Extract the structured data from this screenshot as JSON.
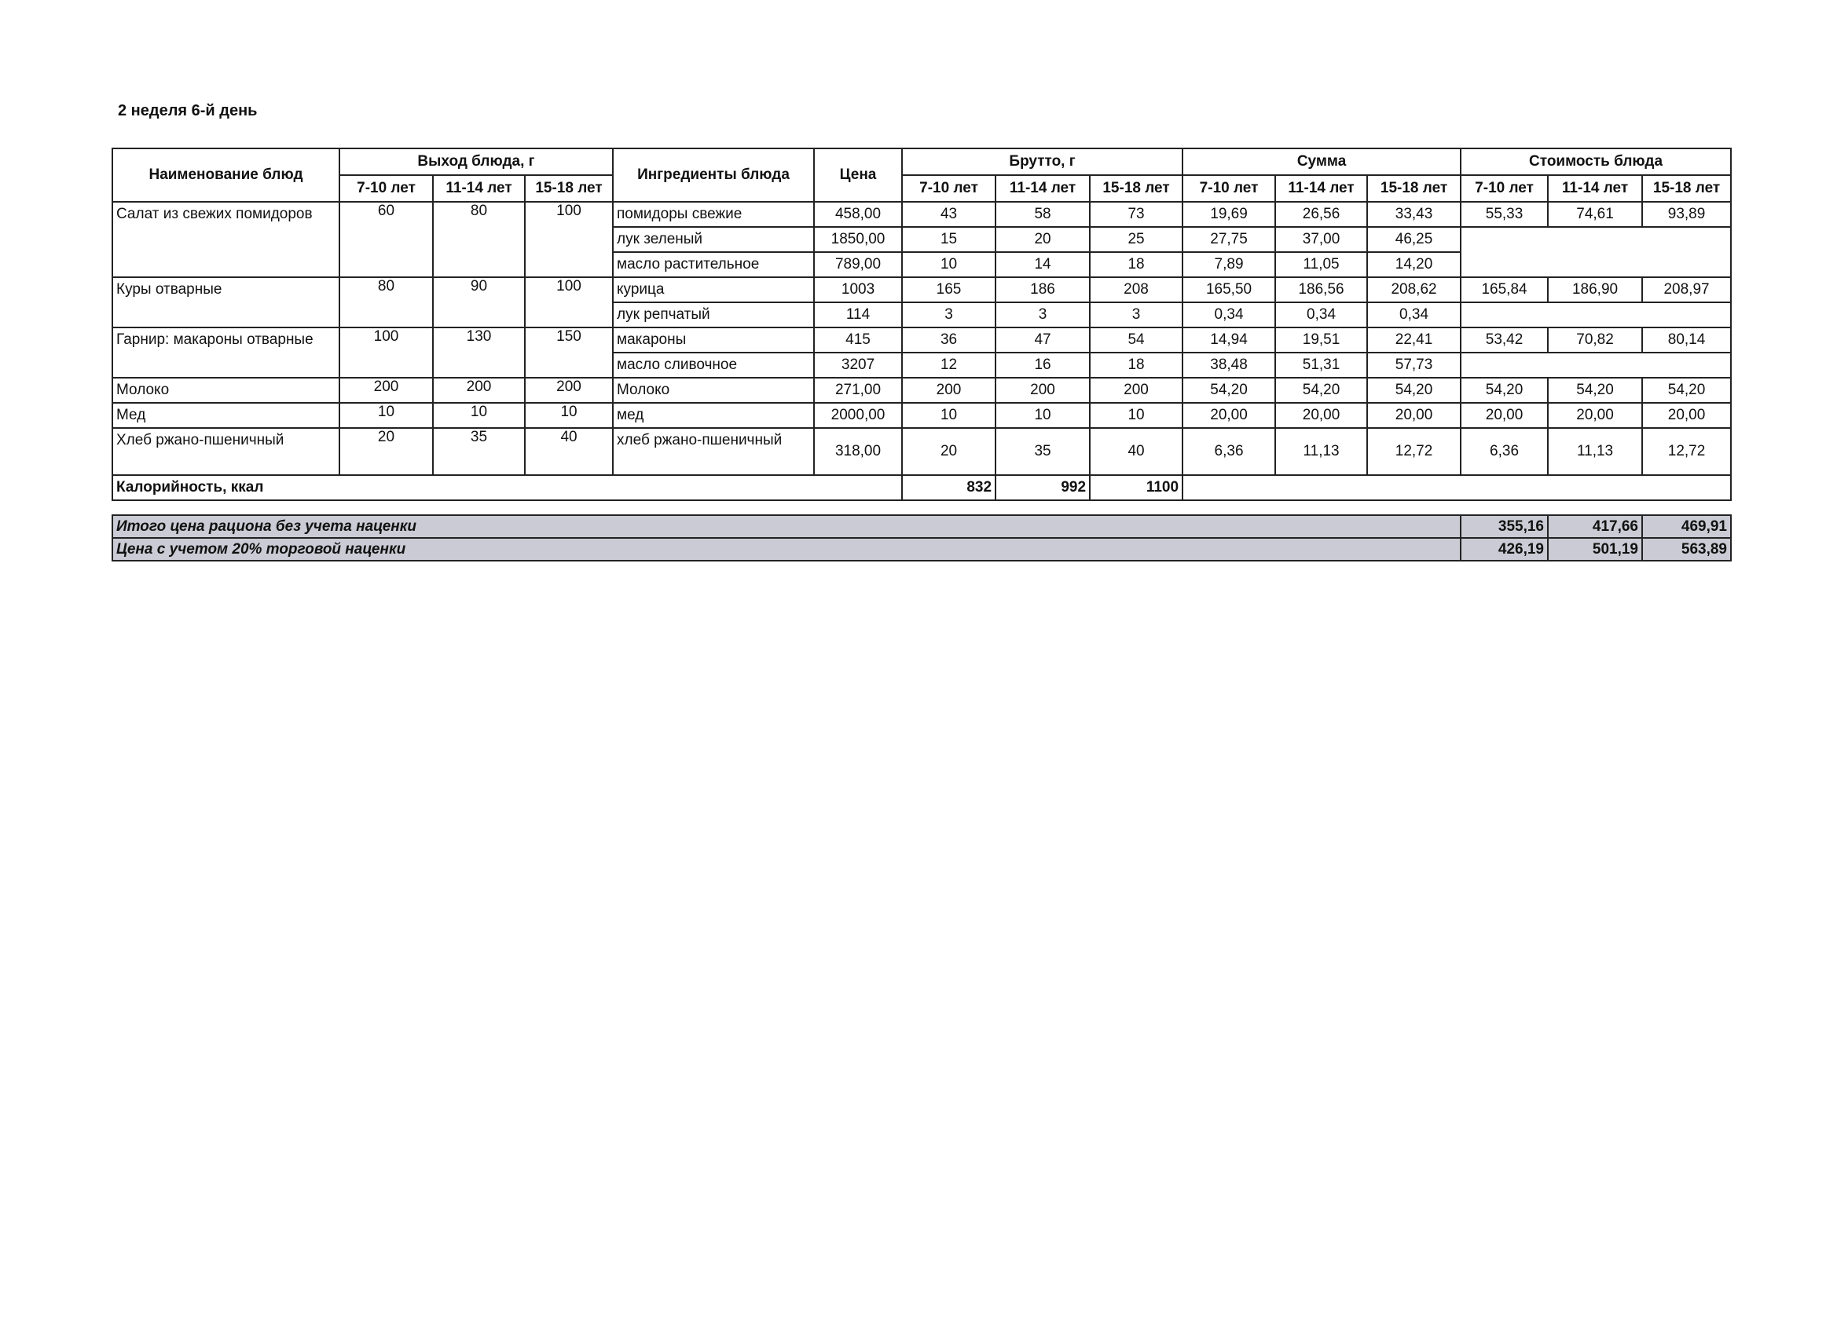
{
  "title": "2 неделя 6-й день",
  "headers": {
    "dish": "Наименование блюд",
    "yield": "Выход блюда, г",
    "ingredients": "Ингредиенты блюда",
    "price": "Цена",
    "brutto": "Брутто, г",
    "sum": "Сумма",
    "cost": "Стоимость блюда",
    "ages": [
      "7-10 лет",
      "11-14 лет",
      "15-18 лет"
    ]
  },
  "dishes": [
    {
      "name": "Салат из свежих помидоров",
      "yield": [
        "60",
        "80",
        "100"
      ],
      "cost": [
        "55,33",
        "74,61",
        "93,89"
      ],
      "ingredients": [
        {
          "name": "помидоры свежие",
          "price": "458,00",
          "brutto": [
            "43",
            "58",
            "73"
          ],
          "sum": [
            "19,69",
            "26,56",
            "33,43"
          ]
        },
        {
          "name": "лук зеленый",
          "price": "1850,00",
          "brutto": [
            "15",
            "20",
            "25"
          ],
          "sum": [
            "27,75",
            "37,00",
            "46,25"
          ]
        },
        {
          "name": "масло растительное",
          "price": "789,00",
          "brutto": [
            "10",
            "14",
            "18"
          ],
          "sum": [
            "7,89",
            "11,05",
            "14,20"
          ]
        }
      ]
    },
    {
      "name": "Куры отварные",
      "yield": [
        "80",
        "90",
        "100"
      ],
      "cost": [
        "165,84",
        "186,90",
        "208,97"
      ],
      "ingredients": [
        {
          "name": "курица",
          "price": "1003",
          "brutto": [
            "165",
            "186",
            "208"
          ],
          "sum": [
            "165,50",
            "186,56",
            "208,62"
          ]
        },
        {
          "name": "лук репчатый",
          "price": "114",
          "brutto": [
            "3",
            "3",
            "3"
          ],
          "sum": [
            "0,34",
            "0,34",
            "0,34"
          ]
        }
      ]
    },
    {
      "name": "Гарнир: макароны отварные",
      "yield": [
        "100",
        "130",
        "150"
      ],
      "cost": [
        "53,42",
        "70,82",
        "80,14"
      ],
      "ingredients": [
        {
          "name": "макароны",
          "price": "415",
          "brutto": [
            "36",
            "47",
            "54"
          ],
          "sum": [
            "14,94",
            "19,51",
            "22,41"
          ]
        },
        {
          "name": "масло сливочное",
          "price": "3207",
          "brutto": [
            "12",
            "16",
            "18"
          ],
          "sum": [
            "38,48",
            "51,31",
            "57,73"
          ]
        }
      ]
    },
    {
      "name": "Молоко",
      "yield": [
        "200",
        "200",
        "200"
      ],
      "cost": [
        "54,20",
        "54,20",
        "54,20"
      ],
      "ingredients": [
        {
          "name": "Молоко",
          "price": "271,00",
          "brutto": [
            "200",
            "200",
            "200"
          ],
          "sum": [
            "54,20",
            "54,20",
            "54,20"
          ]
        }
      ]
    },
    {
      "name": "Мед",
      "yield": [
        "10",
        "10",
        "10"
      ],
      "cost": [
        "20,00",
        "20,00",
        "20,00"
      ],
      "ingredients": [
        {
          "name": "мед",
          "price": "2000,00",
          "brutto": [
            "10",
            "10",
            "10"
          ],
          "sum": [
            "20,00",
            "20,00",
            "20,00"
          ]
        }
      ]
    },
    {
      "name": "Хлеб ржано-пшеничный",
      "yield": [
        "20",
        "35",
        "40"
      ],
      "cost": [
        "6,36",
        "11,13",
        "12,72"
      ],
      "ingredients": [
        {
          "name": "хлеб ржано-пшеничный",
          "price": "318,00",
          "brutto": [
            "20",
            "35",
            "40"
          ],
          "sum": [
            "6,36",
            "11,13",
            "12,72"
          ]
        }
      ]
    }
  ],
  "calories": {
    "label": "Калорийность, ккал",
    "values": [
      "832",
      "992",
      "1100"
    ]
  },
  "summary": [
    {
      "label": "Итого цена рациона без учета наценки",
      "values": [
        "355,16",
        "417,66",
        "469,91"
      ]
    },
    {
      "label": "Цена с учетом 20% торговой наценки",
      "values": [
        "426,19",
        "501,19",
        "563,89"
      ]
    }
  ]
}
